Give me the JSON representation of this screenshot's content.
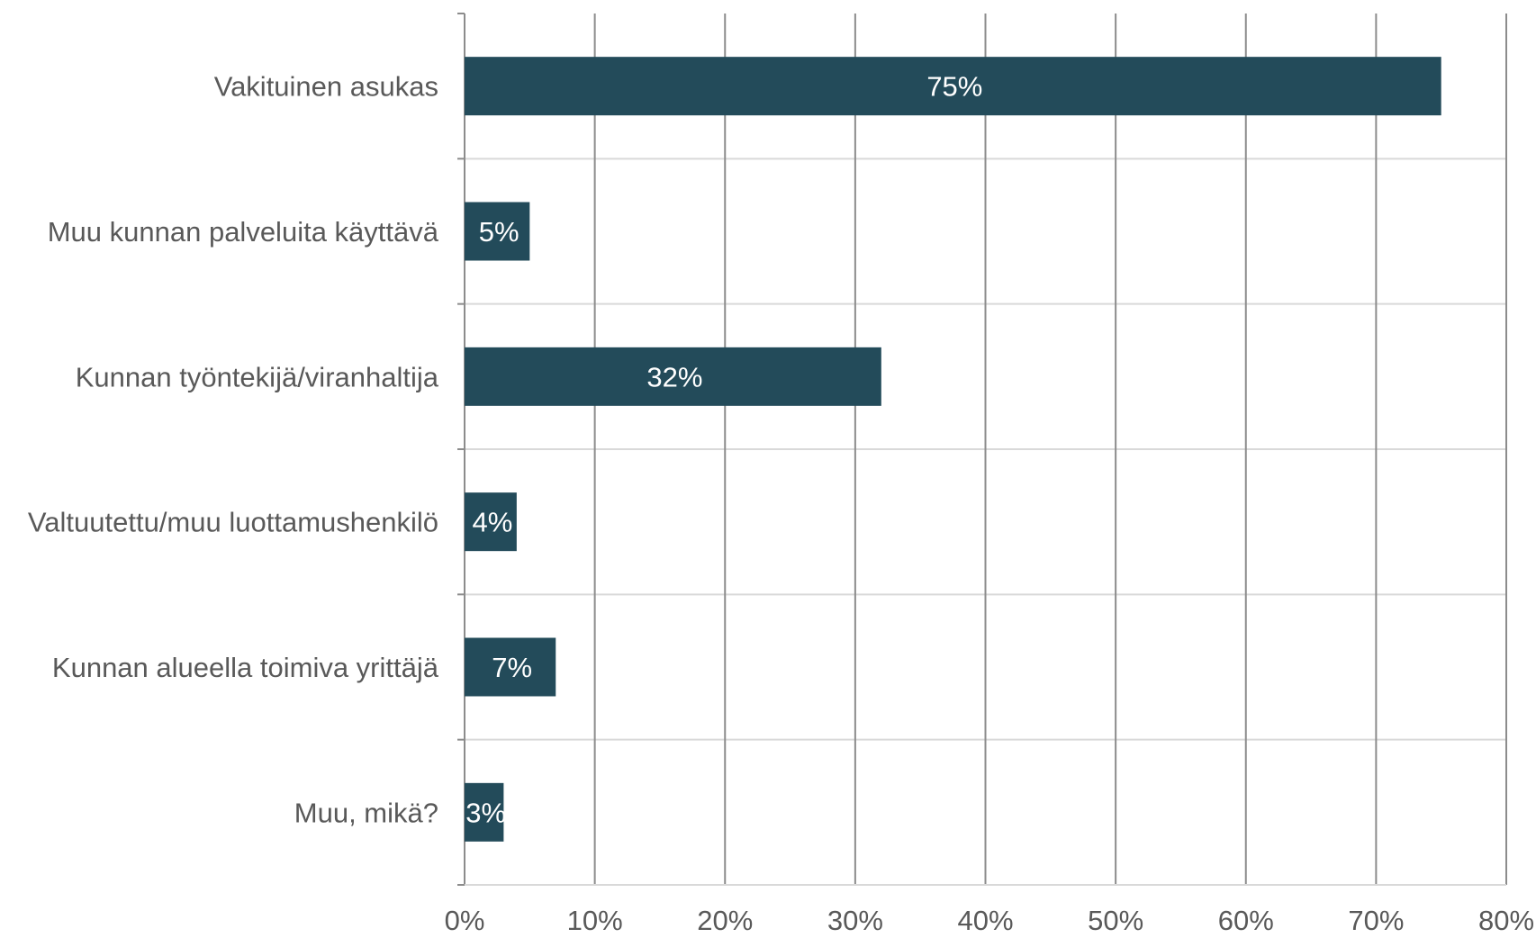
{
  "chart_data": {
    "type": "bar",
    "orientation": "horizontal",
    "categories": [
      "Vakituinen asukas",
      "Muu kunnan palveluita käyttävä",
      "Kunnan työntekijä/viranhaltija",
      "Valtuutettu/muu luottamushenkilö",
      "Kunnan alueella toimiva yrittäjä",
      "Muu, mikä?"
    ],
    "values": [
      75,
      5,
      32,
      4,
      7,
      3
    ],
    "value_labels": [
      "75%",
      "5%",
      "32%",
      "4%",
      "7%",
      "3%"
    ],
    "xlim": [
      0,
      80
    ],
    "xticks": [
      0,
      10,
      20,
      30,
      40,
      50,
      60,
      70,
      80
    ],
    "xtick_labels": [
      "0%",
      "10%",
      "20%",
      "30%",
      "40%",
      "50%",
      "60%",
      "70%",
      "80%"
    ],
    "grid": true,
    "legend": "none",
    "colors": {
      "bar": "#234b5a",
      "bar_label": "#ffffff",
      "category_label": "#595959",
      "tick_label": "#595959",
      "vertical_grid": "#8c8c8c",
      "row_separator": "#d9d9d9"
    }
  }
}
